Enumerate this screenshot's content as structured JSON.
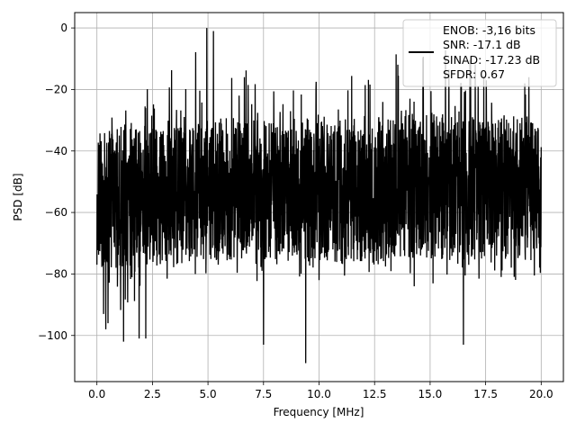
{
  "chart_data": {
    "type": "line",
    "title": "",
    "xlabel": "Frequency [MHz]",
    "ylabel": "PSD [dB]",
    "xlim": [
      -1,
      21
    ],
    "ylim": [
      -115,
      5
    ],
    "xticks": [
      0.0,
      2.5,
      5.0,
      7.5,
      10.0,
      12.5,
      15.0,
      17.5,
      20.0
    ],
    "xtick_labels": [
      "0.0",
      "2.5",
      "5.0",
      "7.5",
      "10.0",
      "12.5",
      "15.0",
      "17.5",
      "20.0"
    ],
    "yticks": [
      0,
      -20,
      -40,
      -60,
      -80,
      -100
    ],
    "ytick_labels": [
      "0",
      "−20",
      "−40",
      "−60",
      "−80",
      "−100"
    ],
    "grid": true,
    "legend": {
      "position": "top-right",
      "lines": [
        "ENOB: -3,16 bits",
        "SNR: -17.1 dB",
        "SINAD: -17.23 dB",
        "SFDR: 0.67"
      ]
    },
    "series": [
      {
        "color": "#000000",
        "style": "dense noise spectrum",
        "x_range": [
          0.0,
          20.0
        ],
        "envelope": {
          "x": [
            0,
            1,
            2,
            3,
            4,
            5,
            6,
            7,
            8,
            9,
            10,
            11,
            12,
            13,
            14,
            15,
            16,
            17,
            18,
            19,
            20
          ],
          "upper": [
            -25,
            -24,
            -20,
            -15,
            -9,
            0,
            -5,
            -12,
            -20,
            -20,
            -16,
            -14,
            -9,
            -7,
            -5,
            -3,
            -5,
            -8,
            -10,
            -10,
            -22
          ],
          "lower": [
            -92,
            -95,
            -95,
            -88,
            -86,
            -86,
            -84,
            -83,
            -84,
            -85,
            -85,
            -84,
            -82,
            -84,
            -85,
            -84,
            -83,
            -84,
            -86,
            -86,
            -80
          ],
          "typical_high": [
            -33,
            -33,
            -32,
            -32,
            -32,
            -30,
            -30,
            -31,
            -31,
            -31,
            -30,
            -30,
            -29,
            -29,
            -28,
            -28,
            -29,
            -29,
            -29,
            -29,
            -30
          ],
          "typical_low": [
            -78,
            -78,
            -78,
            -77,
            -77,
            -76,
            -76,
            -76,
            -76,
            -76,
            -76,
            -76,
            -76,
            -76,
            -75,
            -75,
            -76,
            -76,
            -76,
            -76,
            -76
          ]
        },
        "notable_points": [
          {
            "x": 0.0,
            "y": -77
          },
          {
            "x": 0.3,
            "y": -93
          },
          {
            "x": 0.4,
            "y": -98
          },
          {
            "x": 0.5,
            "y": -96
          },
          {
            "x": 1.2,
            "y": -102
          },
          {
            "x": 1.9,
            "y": -101
          },
          {
            "x": 2.2,
            "y": -101
          },
          {
            "x": 4.95,
            "y": 0
          },
          {
            "x": 5.25,
            "y": -1
          },
          {
            "x": 7.5,
            "y": -103
          },
          {
            "x": 9.4,
            "y": -109
          },
          {
            "x": 16.5,
            "y": -103
          }
        ]
      }
    ]
  }
}
